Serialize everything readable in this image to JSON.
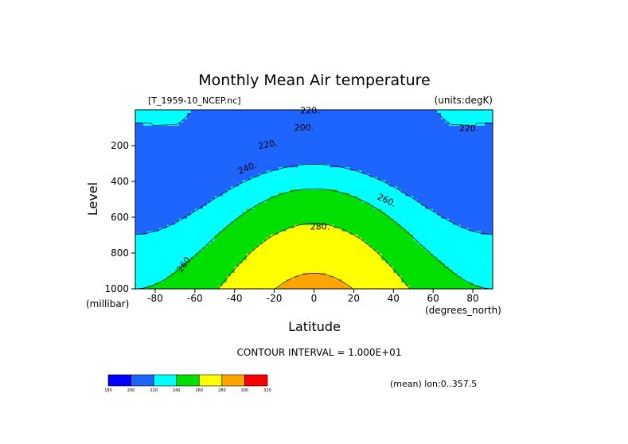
{
  "chart_data": {
    "type": "heatmap",
    "title": "Monthly Mean Air temperature",
    "source_label": "[T_1959-10_NCEP.nc]",
    "units_label": "(units:degK)",
    "xlabel": "Latitude",
    "ylabel": "Level",
    "x_unit": "(degrees_north)",
    "y_unit": "(millibar)",
    "xlim": [
      -90,
      90
    ],
    "ylim": [
      1000,
      0
    ],
    "x_ticks": [
      -80,
      -60,
      -40,
      -20,
      0,
      20,
      40,
      60,
      80
    ],
    "y_ticks": [
      200,
      400,
      600,
      800,
      1000
    ],
    "contour_interval_text": "CONTOUR INTERVAL = 1.000E+01",
    "mean_text": "(mean) lon:0..357.5",
    "contour_labels": [
      "220.",
      "200.",
      "220.",
      "220.",
      "240.",
      "260.",
      "280.",
      "260."
    ],
    "colorbar": {
      "levels": [
        "180",
        "200",
        "220",
        "240",
        "260",
        "280",
        "300",
        "320"
      ],
      "colors": [
        "#0000ff",
        "#1e64ff",
        "#00ffff",
        "#00e000",
        "#ffff00",
        "#ffa500",
        "#ff0000"
      ]
    }
  }
}
